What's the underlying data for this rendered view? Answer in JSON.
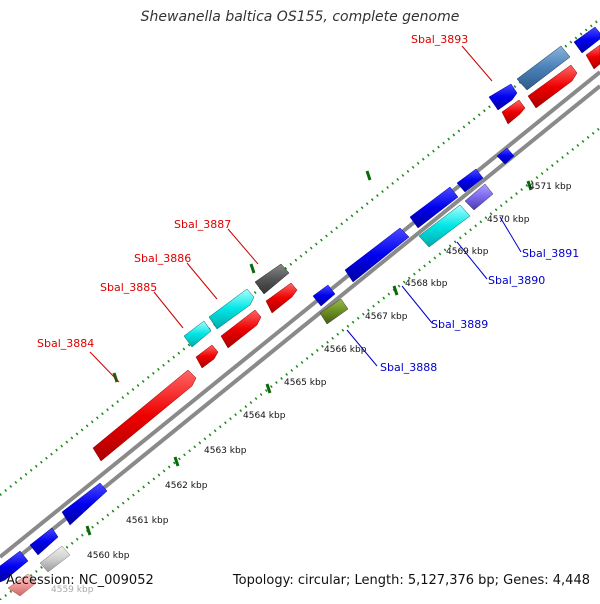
{
  "title": "Shewanella baltica OS155, complete genome",
  "footer": {
    "accession": "Accession: NC_009052",
    "summary": "Topology: circular; Length: 5,127,376 bp; Genes: 4,448"
  },
  "colors": {
    "forward_label": "#dd0000",
    "reverse_label": "#0000cc",
    "dots": "#1a8a1a",
    "backbone": "#888888"
  },
  "kbp_ticks": [
    "4559 kbp",
    "4560 kbp",
    "4561 kbp",
    "4562 kbp",
    "4563 kbp",
    "4564 kbp",
    "4565 kbp",
    "4566 kbp",
    "4567 kbp",
    "4568 kbp",
    "4569 kbp",
    "4570 kbp",
    "4571 kbp"
  ],
  "forward_labels": [
    "Sbal_3884",
    "Sbal_3885",
    "Sbal_3886",
    "Sbal_3887",
    "Sbal_3893"
  ],
  "reverse_labels": [
    "Sbal_3888",
    "Sbal_3889",
    "Sbal_3890",
    "Sbal_3891"
  ]
}
